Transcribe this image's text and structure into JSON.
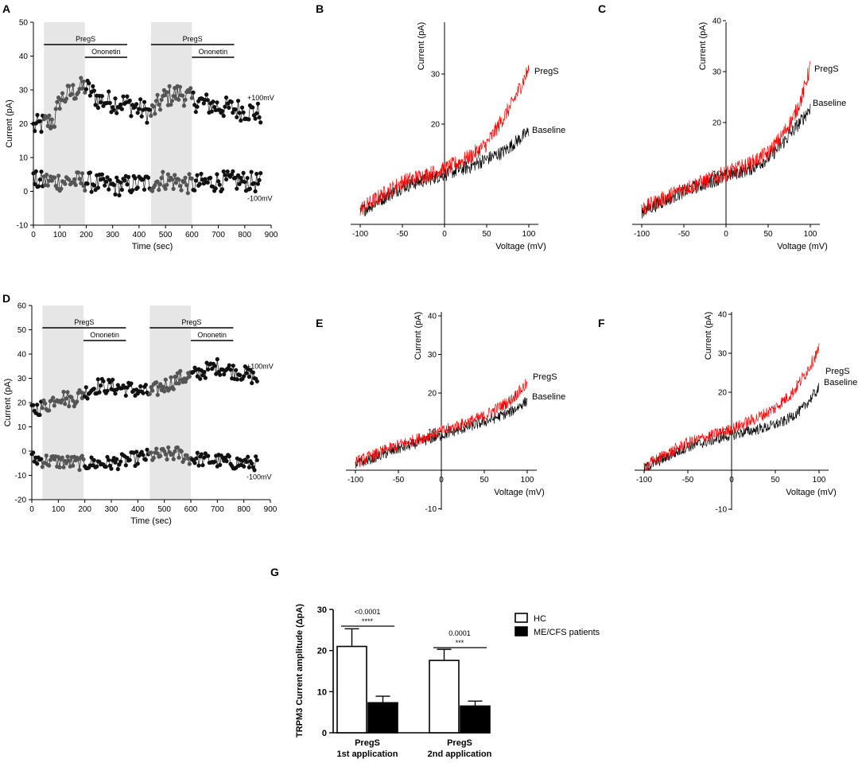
{
  "figure": {
    "colors": {
      "axis": "#000000",
      "shade": "#e6e6e6",
      "pregs": "#ff0000",
      "baseline": "#000000",
      "dot_dark": "#111111",
      "dot_gray": "#555555",
      "hc_fill": "#ffffff",
      "pt_fill": "#000000"
    }
  },
  "chart_data": [
    {
      "id": "A",
      "type": "scatter",
      "panel_label": "A",
      "xlabel": "Time (sec)",
      "ylabel": "Current (pA)",
      "xlim": [
        0,
        900
      ],
      "ylim": [
        -10,
        50
      ],
      "xticks": [
        0,
        100,
        200,
        300,
        400,
        500,
        600,
        700,
        800,
        900
      ],
      "yticks": [
        -10,
        0,
        10,
        20,
        30,
        40,
        50
      ],
      "shaded_intervals": [
        [
          40,
          195
        ],
        [
          445,
          600
        ]
      ],
      "bars": [
        {
          "label": "PregS",
          "start": 40,
          "end": 355,
          "level": 1
        },
        {
          "label": "Ononetin",
          "start": 195,
          "end": 355,
          "level": 2
        },
        {
          "label": "PregS",
          "start": 445,
          "end": 760,
          "level": 1
        },
        {
          "label": "Ononetin",
          "start": 600,
          "end": 760,
          "level": 2
        }
      ],
      "series": [
        {
          "name": "+100mV",
          "t_end": 860,
          "points": [
            [
              0,
              19
            ],
            [
              40,
              20
            ],
            [
              80,
              21
            ],
            [
              100,
              27
            ],
            [
              140,
              29
            ],
            [
              195,
              31
            ],
            [
              250,
              27
            ],
            [
              350,
              26
            ],
            [
              445,
              23
            ],
            [
              500,
              28
            ],
            [
              560,
              29
            ],
            [
              600,
              27
            ],
            [
              700,
              25
            ],
            [
              800,
              24
            ],
            [
              860,
              23
            ]
          ]
        },
        {
          "name": "-100mV",
          "t_end": 860,
          "points": [
            [
              0,
              3
            ],
            [
              100,
              3
            ],
            [
              195,
              3
            ],
            [
              300,
              1.5
            ],
            [
              445,
              2.5
            ],
            [
              500,
              3.5
            ],
            [
              600,
              2
            ],
            [
              700,
              3
            ],
            [
              800,
              3
            ],
            [
              860,
              2.5
            ]
          ]
        }
      ]
    },
    {
      "id": "B",
      "type": "line",
      "panel_label": "B",
      "xlabel": "Voltage (mV)",
      "ylabel": "Current (pA)",
      "xlim": [
        -100,
        100
      ],
      "ylim": [
        -1,
        40
      ],
      "xticks": [
        -100,
        -50,
        0,
        50,
        100
      ],
      "yticks": [
        10,
        20,
        30
      ],
      "series": [
        {
          "name": "PregS",
          "points": [
            [
              -100,
              3
            ],
            [
              -50,
              8.5
            ],
            [
              0,
              11
            ],
            [
              30,
              13.5
            ],
            [
              50,
              16
            ],
            [
              65,
              20
            ],
            [
              80,
              24
            ],
            [
              90,
              27.5
            ],
            [
              100,
              31
            ]
          ]
        },
        {
          "name": "Baseline",
          "points": [
            [
              -100,
              2.5
            ],
            [
              -50,
              7.5
            ],
            [
              0,
              10
            ],
            [
              30,
              11.5
            ],
            [
              50,
              13
            ],
            [
              70,
              14.5
            ],
            [
              85,
              16.5
            ],
            [
              100,
              18.5
            ]
          ]
        }
      ]
    },
    {
      "id": "C",
      "type": "line",
      "panel_label": "C",
      "xlabel": "Voltage (mV)",
      "ylabel": "Current (pA)",
      "xlim": [
        -100,
        100
      ],
      "ylim": [
        -1,
        40
      ],
      "xticks": [
        -100,
        -50,
        0,
        50,
        100
      ],
      "yticks": [
        10,
        20,
        30,
        40
      ],
      "series": [
        {
          "name": "PregS",
          "points": [
            [
              -100,
              3
            ],
            [
              -50,
              7
            ],
            [
              0,
              10
            ],
            [
              30,
              12
            ],
            [
              50,
              14
            ],
            [
              65,
              17
            ],
            [
              80,
              21
            ],
            [
              90,
              25
            ],
            [
              100,
              31
            ]
          ]
        },
        {
          "name": "Baseline",
          "points": [
            [
              -100,
              2.5
            ],
            [
              -50,
              6.5
            ],
            [
              0,
              9.5
            ],
            [
              30,
              11
            ],
            [
              50,
              13
            ],
            [
              65,
              15.5
            ],
            [
              80,
              18.5
            ],
            [
              90,
              20.5
            ],
            [
              100,
              23
            ]
          ]
        }
      ]
    },
    {
      "id": "D",
      "type": "scatter",
      "panel_label": "D",
      "xlabel": "Time (sec)",
      "ylabel": "Current (pA)",
      "xlim": [
        0,
        900
      ],
      "ylim": [
        -20,
        60
      ],
      "xticks": [
        0,
        100,
        200,
        300,
        400,
        500,
        600,
        700,
        800,
        900
      ],
      "yticks": [
        -20,
        -10,
        0,
        10,
        20,
        30,
        40,
        50,
        60
      ],
      "shaded_intervals": [
        [
          40,
          195
        ],
        [
          445,
          600
        ]
      ],
      "bars": [
        {
          "label": "PregS",
          "start": 40,
          "end": 355,
          "level": 1
        },
        {
          "label": "Ononetin",
          "start": 195,
          "end": 355,
          "level": 2
        },
        {
          "label": "PregS",
          "start": 445,
          "end": 760,
          "level": 1
        },
        {
          "label": "Ononetin",
          "start": 600,
          "end": 760,
          "level": 2
        }
      ],
      "series": [
        {
          "name": "+100mV",
          "t_end": 850,
          "points": [
            [
              0,
              17
            ],
            [
              60,
              19
            ],
            [
              100,
              23
            ],
            [
              150,
              21
            ],
            [
              195,
              24
            ],
            [
              250,
              27
            ],
            [
              350,
              26
            ],
            [
              445,
              24
            ],
            [
              500,
              27
            ],
            [
              560,
              30
            ],
            [
              600,
              31
            ],
            [
              700,
              35
            ],
            [
              760,
              33
            ],
            [
              800,
              32
            ],
            [
              850,
              30
            ]
          ]
        },
        {
          "name": "-100mV",
          "t_end": 850,
          "points": [
            [
              0,
              -3
            ],
            [
              60,
              -4
            ],
            [
              195,
              -5
            ],
            [
              300,
              -5
            ],
            [
              445,
              -2
            ],
            [
              550,
              -1
            ],
            [
              600,
              -3
            ],
            [
              700,
              -4
            ],
            [
              800,
              -5
            ],
            [
              850,
              -5
            ]
          ]
        }
      ]
    },
    {
      "id": "E",
      "type": "line",
      "panel_label": "E",
      "xlabel": "Voltage (mV)",
      "ylabel": "Current (pA)",
      "xlim": [
        -100,
        100
      ],
      "ylim": [
        -11,
        40
      ],
      "xticks": [
        -100,
        -50,
        0,
        50,
        100
      ],
      "yticks": [
        -10,
        10,
        20,
        30,
        40
      ],
      "series": [
        {
          "name": "PregS",
          "points": [
            [
              -100,
              2
            ],
            [
              -50,
              6.5
            ],
            [
              0,
              10
            ],
            [
              50,
              14
            ],
            [
              80,
              18
            ],
            [
              100,
              22.5
            ]
          ]
        },
        {
          "name": "Baseline",
          "points": [
            [
              -100,
              1.5
            ],
            [
              -50,
              5.5
            ],
            [
              0,
              9
            ],
            [
              50,
              12.5
            ],
            [
              80,
              15
            ],
            [
              100,
              18
            ]
          ]
        }
      ]
    },
    {
      "id": "F",
      "type": "line",
      "panel_label": "F",
      "xlabel": "Voltage (mV)",
      "ylabel": "Current (pA)",
      "xlim": [
        -100,
        100
      ],
      "ylim": [
        -11,
        40
      ],
      "xticks": [
        -100,
        -50,
        0,
        50,
        100
      ],
      "yticks": [
        -10,
        10,
        20,
        30,
        40
      ],
      "series": [
        {
          "name": "PregS",
          "points": [
            [
              -100,
              1
            ],
            [
              -50,
              7
            ],
            [
              0,
              10.5
            ],
            [
              30,
              13.5
            ],
            [
              50,
              16
            ],
            [
              70,
              20
            ],
            [
              85,
              25
            ],
            [
              100,
              31
            ]
          ]
        },
        {
          "name": "Baseline",
          "points": [
            [
              -100,
              0.5
            ],
            [
              -50,
              6
            ],
            [
              0,
              9
            ],
            [
              40,
              11
            ],
            [
              60,
              12.5
            ],
            [
              80,
              15.5
            ],
            [
              100,
              21
            ]
          ]
        }
      ]
    },
    {
      "id": "G",
      "type": "bar",
      "panel_label": "G",
      "ylabel": "TRPM3 Current amplitude (ΔpA)",
      "ylim": [
        0,
        30
      ],
      "yticks": [
        0,
        10,
        20,
        30
      ],
      "categories": [
        [
          "PregS",
          "1st application"
        ],
        [
          "PregS",
          "2nd application"
        ]
      ],
      "series": [
        {
          "name": "HC",
          "values": [
            21,
            17.6
          ],
          "errors": [
            4.3,
            2.7
          ]
        },
        {
          "name": "ME/CFS patients",
          "values": [
            7.3,
            6.5
          ],
          "errors": [
            1.6,
            1.2
          ]
        }
      ],
      "annotations": [
        {
          "pvalue": "<0.0001",
          "stars": "****"
        },
        {
          "pvalue": "0.0001",
          "stars": "***"
        }
      ],
      "legend": "right"
    }
  ]
}
